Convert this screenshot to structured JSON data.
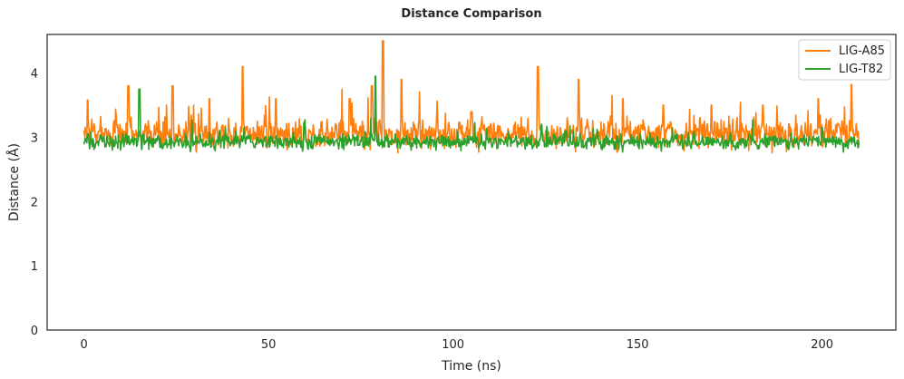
{
  "chart_data": {
    "type": "line",
    "title": "Distance Comparison",
    "xlabel": "Time (ns)",
    "ylabel": "Distance (Å)",
    "xlim": [
      -10,
      220
    ],
    "ylim": [
      0,
      4.6
    ],
    "xticks": [
      0,
      50,
      100,
      150,
      200
    ],
    "yticks": [
      0,
      1,
      2,
      3,
      4
    ],
    "grid": false,
    "legend": "top-right",
    "series": [
      {
        "name": "LIG-A85",
        "color": "#ff7f0e",
        "baseline": 3.05,
        "spread": 0.18,
        "spikes": [
          [
            1,
            3.58
          ],
          [
            12,
            3.8
          ],
          [
            24,
            3.8
          ],
          [
            34,
            3.6
          ],
          [
            43,
            4.1
          ],
          [
            52,
            3.6
          ],
          [
            72,
            3.6
          ],
          [
            78,
            3.8
          ],
          [
            81,
            4.5
          ],
          [
            86,
            3.9
          ],
          [
            105,
            3.4
          ],
          [
            123,
            4.1
          ],
          [
            134,
            3.9
          ],
          [
            146,
            3.6
          ],
          [
            157,
            3.5
          ],
          [
            170,
            3.5
          ],
          [
            184,
            3.5
          ],
          [
            199,
            3.6
          ],
          [
            208,
            3.82
          ]
        ],
        "x_range": [
          0,
          210
        ]
      },
      {
        "name": "LIG-T82",
        "color": "#2ca02c",
        "baseline": 2.93,
        "spread": 0.09,
        "spikes": [
          [
            15,
            3.75
          ],
          [
            79,
            3.95
          ],
          [
            124,
            3.2
          ],
          [
            200,
            3.15
          ]
        ],
        "x_range": [
          0,
          210
        ]
      }
    ]
  }
}
